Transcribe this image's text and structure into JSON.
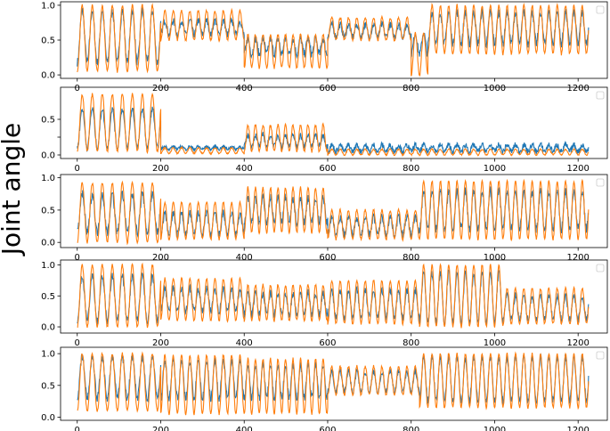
{
  "ylabel": "Joint angle",
  "chart_data": [
    {
      "type": "line",
      "xlim": [
        -40,
        1270
      ],
      "ylim": [
        -0.05,
        1.05
      ],
      "xticks": [
        0,
        200,
        400,
        600,
        800,
        1000,
        1200
      ],
      "yticks": [
        0.0,
        0.5,
        1.0
      ],
      "ytick_labels": [
        "0.0",
        "0.5",
        "1.0"
      ],
      "legend": "top-right",
      "series": [
        {
          "color": "#1f77b4",
          "segments": [
            {
              "x0": 0,
              "x1": 200,
              "period": 24,
              "lo": 0.18,
              "hi": 0.92,
              "noise": 0.06
            },
            {
              "x0": 200,
              "x1": 400,
              "period": 20,
              "lo": 0.58,
              "hi": 0.78,
              "noise": 0.05
            },
            {
              "x0": 400,
              "x1": 600,
              "period": 18,
              "lo": 0.3,
              "hi": 0.52,
              "noise": 0.06
            },
            {
              "x0": 600,
              "x1": 800,
              "period": 20,
              "lo": 0.55,
              "hi": 0.72,
              "noise": 0.05
            },
            {
              "x0": 800,
              "x1": 840,
              "period": 20,
              "lo": 0.3,
              "hi": 0.6,
              "noise": 0.05
            },
            {
              "x0": 840,
              "x1": 1225,
              "period": 20,
              "lo": 0.45,
              "hi": 0.9,
              "noise": 0.06
            }
          ]
        },
        {
          "color": "#ff7f0e",
          "segments": [
            {
              "x0": 0,
              "x1": 200,
              "period": 24,
              "lo": 0.05,
              "hi": 1.0,
              "noise": 0.02
            },
            {
              "x0": 200,
              "x1": 400,
              "period": 20,
              "lo": 0.5,
              "hi": 0.92,
              "noise": 0.02
            },
            {
              "x0": 400,
              "x1": 600,
              "period": 18,
              "lo": 0.1,
              "hi": 0.58,
              "noise": 0.02
            },
            {
              "x0": 600,
              "x1": 800,
              "period": 20,
              "lo": 0.5,
              "hi": 0.82,
              "noise": 0.02
            },
            {
              "x0": 800,
              "x1": 840,
              "period": 20,
              "lo": 0.0,
              "hi": 0.6,
              "noise": 0.02
            },
            {
              "x0": 840,
              "x1": 1225,
              "period": 20,
              "lo": 0.3,
              "hi": 1.0,
              "noise": 0.02
            }
          ]
        }
      ]
    },
    {
      "type": "line",
      "xlim": [
        -40,
        1270
      ],
      "ylim": [
        -0.05,
        0.95
      ],
      "xticks": [
        0,
        200,
        400,
        600,
        800,
        1000,
        1200
      ],
      "yticks": [
        0.0,
        0.25,
        0.5
      ],
      "ytick_labels": [
        "0.0",
        "",
        "0.5"
      ],
      "legend": "top-right",
      "series": [
        {
          "color": "#1f77b4",
          "segments": [
            {
              "x0": 0,
              "x1": 200,
              "period": 24,
              "lo": 0.1,
              "hi": 0.65,
              "noise": 0.04
            },
            {
              "x0": 200,
              "x1": 400,
              "period": 20,
              "lo": 0.08,
              "hi": 0.12,
              "noise": 0.02
            },
            {
              "x0": 400,
              "x1": 600,
              "period": 18,
              "lo": 0.12,
              "hi": 0.28,
              "noise": 0.04
            },
            {
              "x0": 600,
              "x1": 1225,
              "period": 20,
              "lo": 0.05,
              "hi": 0.14,
              "noise": 0.04
            }
          ]
        },
        {
          "color": "#ff7f0e",
          "segments": [
            {
              "x0": 0,
              "x1": 200,
              "period": 24,
              "lo": 0.05,
              "hi": 0.85,
              "noise": 0.02
            },
            {
              "x0": 200,
              "x1": 400,
              "period": 20,
              "lo": 0.02,
              "hi": 0.1,
              "noise": 0.01
            },
            {
              "x0": 400,
              "x1": 600,
              "period": 18,
              "lo": 0.05,
              "hi": 0.42,
              "noise": 0.02
            },
            {
              "x0": 600,
              "x1": 1225,
              "period": 20,
              "lo": 0.0,
              "hi": 0.08,
              "noise": 0.01
            }
          ]
        }
      ]
    },
    {
      "type": "line",
      "xlim": [
        -40,
        1270
      ],
      "ylim": [
        -0.08,
        1.05
      ],
      "xticks": [
        0,
        200,
        400,
        600,
        800,
        1000,
        1200
      ],
      "yticks": [
        0.0,
        0.5,
        1.0
      ],
      "ytick_labels": [
        "0.0",
        "0.5",
        "1.0"
      ],
      "legend": "top-right",
      "series": [
        {
          "color": "#1f77b4",
          "segments": [
            {
              "x0": 0,
              "x1": 200,
              "period": 24,
              "lo": 0.15,
              "hi": 0.75,
              "noise": 0.07
            },
            {
              "x0": 200,
              "x1": 400,
              "period": 20,
              "lo": 0.12,
              "hi": 0.45,
              "noise": 0.06
            },
            {
              "x0": 400,
              "x1": 600,
              "period": 18,
              "lo": 0.3,
              "hi": 0.7,
              "noise": 0.07
            },
            {
              "x0": 600,
              "x1": 820,
              "period": 20,
              "lo": 0.12,
              "hi": 0.4,
              "noise": 0.06
            },
            {
              "x0": 820,
              "x1": 1225,
              "period": 20,
              "lo": 0.2,
              "hi": 0.8,
              "noise": 0.07
            }
          ]
        },
        {
          "color": "#ff7f0e",
          "segments": [
            {
              "x0": 0,
              "x1": 200,
              "period": 24,
              "lo": 0.0,
              "hi": 0.92,
              "noise": 0.02
            },
            {
              "x0": 200,
              "x1": 400,
              "period": 20,
              "lo": 0.05,
              "hi": 0.62,
              "noise": 0.02
            },
            {
              "x0": 400,
              "x1": 600,
              "period": 18,
              "lo": 0.15,
              "hi": 0.85,
              "noise": 0.02
            },
            {
              "x0": 600,
              "x1": 820,
              "period": 20,
              "lo": 0.05,
              "hi": 0.5,
              "noise": 0.02
            },
            {
              "x0": 820,
              "x1": 1225,
              "period": 20,
              "lo": 0.05,
              "hi": 0.95,
              "noise": 0.02
            }
          ]
        }
      ]
    },
    {
      "type": "line",
      "xlim": [
        -40,
        1270
      ],
      "ylim": [
        -0.1,
        1.08
      ],
      "xticks": [
        0,
        200,
        400,
        600,
        800,
        1000,
        1200
      ],
      "yticks": [
        0.0,
        0.5,
        1.0
      ],
      "ytick_labels": [
        "0.0",
        "0.5",
        "1.0"
      ],
      "legend": "top-right",
      "series": [
        {
          "color": "#1f77b4",
          "segments": [
            {
              "x0": 0,
              "x1": 200,
              "period": 24,
              "lo": 0.1,
              "hi": 0.82,
              "noise": 0.06
            },
            {
              "x0": 200,
              "x1": 400,
              "period": 20,
              "lo": 0.25,
              "hi": 0.62,
              "noise": 0.06
            },
            {
              "x0": 400,
              "x1": 600,
              "period": 18,
              "lo": 0.2,
              "hi": 0.55,
              "noise": 0.06
            },
            {
              "x0": 600,
              "x1": 820,
              "period": 20,
              "lo": 0.15,
              "hi": 0.6,
              "noise": 0.06
            },
            {
              "x0": 820,
              "x1": 1020,
              "period": 20,
              "lo": 0.08,
              "hi": 0.88,
              "noise": 0.06
            },
            {
              "x0": 1020,
              "x1": 1225,
              "period": 20,
              "lo": 0.12,
              "hi": 0.5,
              "noise": 0.06
            }
          ]
        },
        {
          "color": "#ff7f0e",
          "segments": [
            {
              "x0": 0,
              "x1": 200,
              "period": 24,
              "lo": 0.0,
              "hi": 1.0,
              "noise": 0.02
            },
            {
              "x0": 200,
              "x1": 400,
              "period": 20,
              "lo": 0.1,
              "hi": 0.78,
              "noise": 0.02
            },
            {
              "x0": 400,
              "x1": 600,
              "period": 18,
              "lo": 0.1,
              "hi": 0.68,
              "noise": 0.02
            },
            {
              "x0": 600,
              "x1": 820,
              "period": 20,
              "lo": 0.05,
              "hi": 0.75,
              "noise": 0.02
            },
            {
              "x0": 820,
              "x1": 1020,
              "period": 20,
              "lo": 0.0,
              "hi": 1.0,
              "noise": 0.02
            },
            {
              "x0": 1020,
              "x1": 1225,
              "period": 20,
              "lo": 0.05,
              "hi": 0.62,
              "noise": 0.02
            }
          ]
        }
      ]
    },
    {
      "type": "line",
      "xlim": [
        -40,
        1270
      ],
      "ylim": [
        -0.05,
        1.1
      ],
      "xticks": [
        0,
        200,
        400,
        600,
        800,
        1000,
        1200
      ],
      "yticks": [
        0.0,
        0.5,
        1.0
      ],
      "ytick_labels": [
        "0.0",
        "0.5",
        "1.0"
      ],
      "legend": "top-right",
      "series": [
        {
          "color": "#1f77b4",
          "segments": [
            {
              "x0": 0,
              "x1": 200,
              "period": 24,
              "lo": 0.3,
              "hi": 0.95,
              "noise": 0.06
            },
            {
              "x0": 200,
              "x1": 400,
              "period": 20,
              "lo": 0.3,
              "hi": 0.88,
              "noise": 0.06
            },
            {
              "x0": 400,
              "x1": 600,
              "period": 18,
              "lo": 0.3,
              "hi": 0.82,
              "noise": 0.06
            },
            {
              "x0": 600,
              "x1": 820,
              "period": 20,
              "lo": 0.4,
              "hi": 0.72,
              "noise": 0.05
            },
            {
              "x0": 820,
              "x1": 1225,
              "period": 20,
              "lo": 0.25,
              "hi": 0.95,
              "noise": 0.06
            }
          ]
        },
        {
          "color": "#ff7f0e",
          "segments": [
            {
              "x0": 0,
              "x1": 200,
              "period": 24,
              "lo": 0.1,
              "hi": 1.0,
              "noise": 0.02
            },
            {
              "x0": 200,
              "x1": 400,
              "period": 20,
              "lo": 0.05,
              "hi": 0.98,
              "noise": 0.02
            },
            {
              "x0": 400,
              "x1": 600,
              "period": 18,
              "lo": 0.05,
              "hi": 0.92,
              "noise": 0.02
            },
            {
              "x0": 600,
              "x1": 820,
              "period": 20,
              "lo": 0.35,
              "hi": 0.8,
              "noise": 0.02
            },
            {
              "x0": 820,
              "x1": 1225,
              "period": 20,
              "lo": 0.15,
              "hi": 1.0,
              "noise": 0.02
            }
          ]
        }
      ]
    }
  ]
}
